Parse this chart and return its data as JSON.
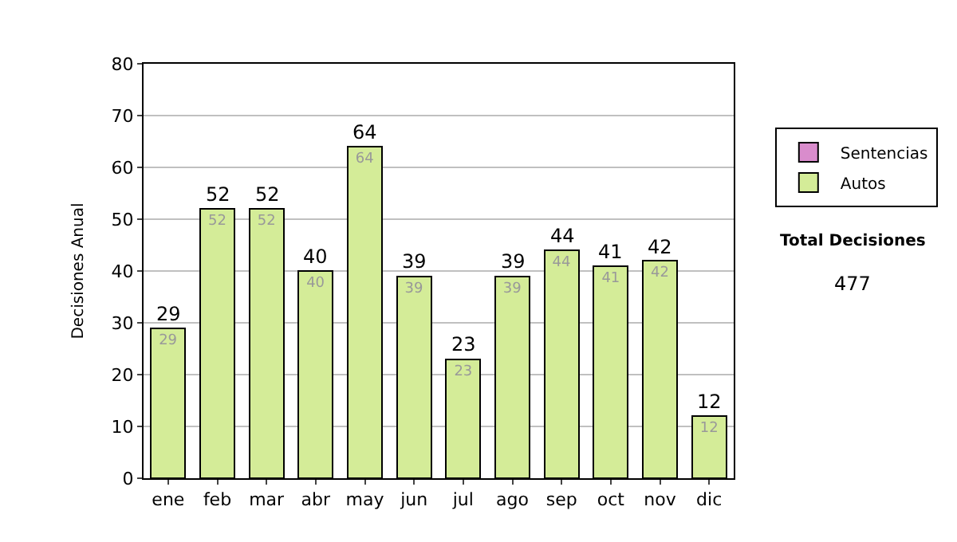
{
  "chart_data": {
    "type": "bar",
    "ylabel": "Decisiones Anual",
    "categories": [
      "ene",
      "feb",
      "mar",
      "abr",
      "may",
      "jun",
      "jul",
      "ago",
      "sep",
      "oct",
      "nov",
      "dic"
    ],
    "series": [
      {
        "name": "Sentencias",
        "color": "#d98ccc",
        "values": [
          null,
          null,
          null,
          null,
          null,
          null,
          null,
          null,
          null,
          null,
          null,
          null
        ]
      },
      {
        "name": "Autos",
        "color": "#d4ec98",
        "values": [
          29,
          52,
          52,
          40,
          64,
          39,
          23,
          39,
          44,
          41,
          42,
          12
        ]
      }
    ],
    "stacked": true,
    "data_labels": true,
    "totals": [
      "29",
      "52",
      "52",
      "40",
      "64",
      "39",
      "23",
      "39",
      "44",
      "41",
      "42",
      "12"
    ],
    "ylim": [
      0,
      80
    ],
    "yticks": [
      0,
      10,
      20,
      30,
      40,
      50,
      60,
      70,
      80
    ],
    "grid": "y",
    "legend": "right",
    "annotations": [
      "Total Decisiones",
      "477"
    ]
  }
}
